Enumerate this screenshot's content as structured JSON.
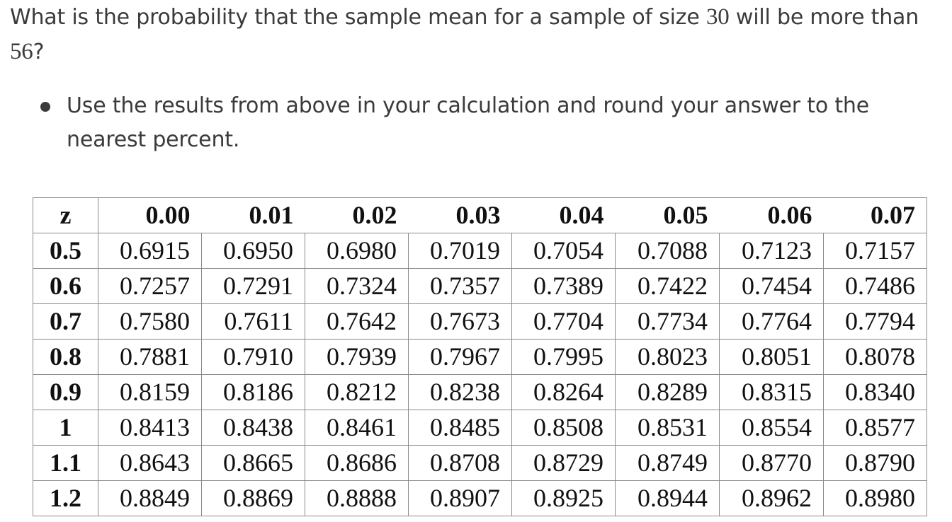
{
  "question": {
    "text_before": "What is the probability that the sample mean for a sample of size ",
    "sample_size": "30",
    "text_middle": " will be more than ",
    "threshold": "56",
    "text_after": "?"
  },
  "bullets": [
    "Use the results from above in your calculation and round your answer to the nearest percent."
  ],
  "table": {
    "columns": [
      "z",
      "0.00",
      "0.01",
      "0.02",
      "0.03",
      "0.04",
      "0.05",
      "0.06",
      "0.07"
    ],
    "rows": [
      {
        "z": "0.5",
        "values": [
          "0.6915",
          "0.6950",
          "0.6980",
          "0.7019",
          "0.7054",
          "0.7088",
          "0.7123",
          "0.7157"
        ]
      },
      {
        "z": "0.6",
        "values": [
          "0.7257",
          "0.7291",
          "0.7324",
          "0.7357",
          "0.7389",
          "0.7422",
          "0.7454",
          "0.7486"
        ]
      },
      {
        "z": "0.7",
        "values": [
          "0.7580",
          "0.7611",
          "0.7642",
          "0.7673",
          "0.7704",
          "0.7734",
          "0.7764",
          "0.7794"
        ]
      },
      {
        "z": "0.8",
        "values": [
          "0.7881",
          "0.7910",
          "0.7939",
          "0.7967",
          "0.7995",
          "0.8023",
          "0.8051",
          "0.8078"
        ]
      },
      {
        "z": "0.9",
        "values": [
          "0.8159",
          "0.8186",
          "0.8212",
          "0.8238",
          "0.8264",
          "0.8289",
          "0.8315",
          "0.8340"
        ]
      },
      {
        "z": "1",
        "values": [
          "0.8413",
          "0.8438",
          "0.8461",
          "0.8485",
          "0.8508",
          "0.8531",
          "0.8554",
          "0.8577"
        ]
      },
      {
        "z": "1.1",
        "values": [
          "0.8643",
          "0.8665",
          "0.8686",
          "0.8708",
          "0.8729",
          "0.8749",
          "0.8770",
          "0.8790"
        ]
      },
      {
        "z": "1.2",
        "values": [
          "0.8849",
          "0.8869",
          "0.8888",
          "0.8907",
          "0.8925",
          "0.8944",
          "0.8962",
          "0.8980"
        ]
      }
    ]
  }
}
